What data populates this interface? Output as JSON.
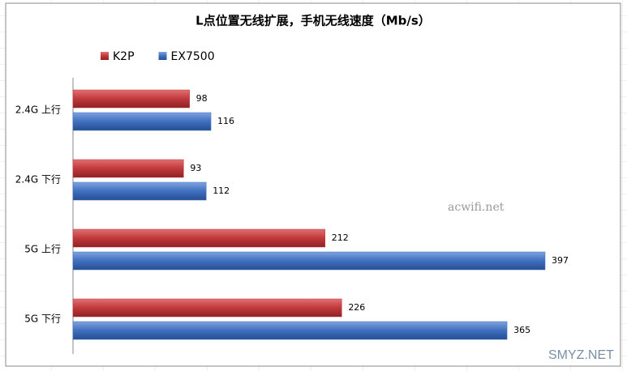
{
  "chart_data": {
    "type": "hbar",
    "title": "L点位置无线扩展，手机无线速度（Mb/s）",
    "categories": [
      "2.4G 上行",
      "2.4G 下行",
      "5G 上行",
      "5G 下行"
    ],
    "series": [
      {
        "name": "K2P",
        "color": "#c0393b",
        "values": [
          98,
          93,
          212,
          226
        ]
      },
      {
        "name": "EX7500",
        "color": "#3f6fbf",
        "values": [
          116,
          112,
          397,
          365
        ]
      }
    ],
    "annotations": [
      "acwifi.net",
      "SMYZ.NET"
    ]
  }
}
